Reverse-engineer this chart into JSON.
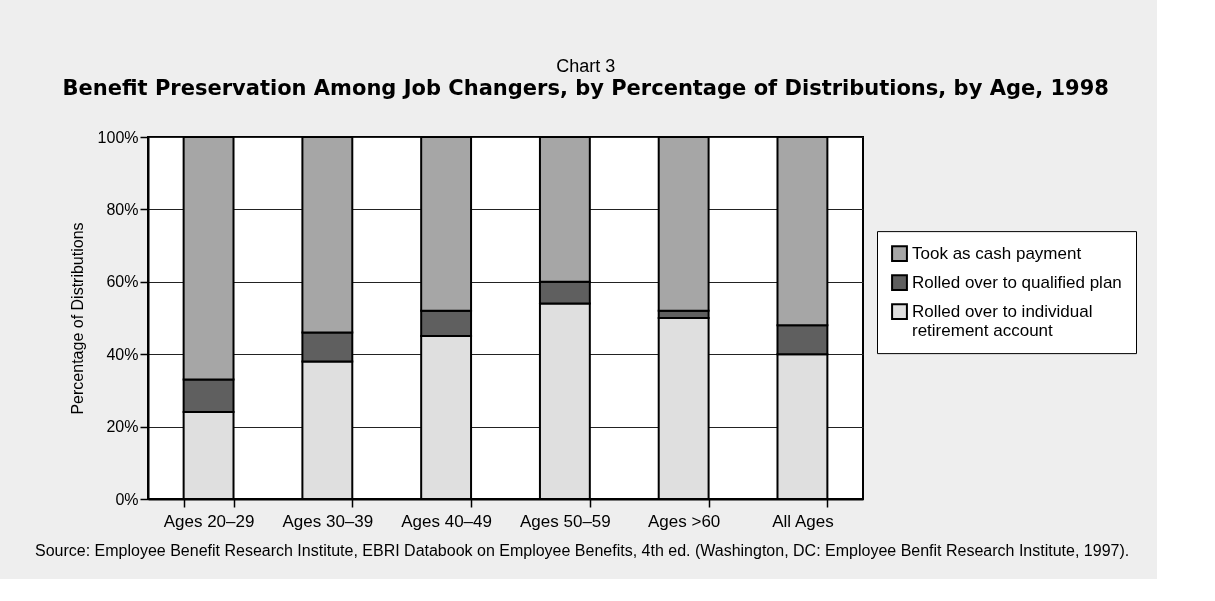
{
  "chart_data": {
    "type": "bar",
    "title": "Chart 3",
    "subtitle": "Benefit Preservation Among Job Changers, by Percentage of Distributions, by Age, 1998",
    "ylabel": "Percentage of Distributions",
    "categories": [
      "Ages 20–29",
      "Ages 30–39",
      "Ages 40–49",
      "Ages 50–59",
      "Ages >60",
      "All Ages"
    ],
    "series": [
      {
        "name": "Rolled over to individual retirement account",
        "color": "#dfdfdf",
        "values": [
          24,
          38,
          45,
          54,
          50,
          40
        ]
      },
      {
        "name": "Rolled over to qualified plan",
        "color": "#5f5f5f",
        "values": [
          9,
          8,
          7,
          6,
          2,
          8
        ]
      },
      {
        "name": "Took as cash payment",
        "color": "#a6a6a6",
        "values": [
          67,
          54,
          48,
          40,
          48,
          52
        ]
      }
    ],
    "stacked": true,
    "ylim": [
      0,
      100
    ],
    "yticks": [
      {
        "value": 0,
        "label": "0%"
      },
      {
        "value": 20,
        "label": "20%"
      },
      {
        "value": 40,
        "label": "40%"
      },
      {
        "value": 60,
        "label": "60%"
      },
      {
        "value": 80,
        "label": "80%"
      },
      {
        "value": 100,
        "label": "100%"
      }
    ],
    "grid": "y",
    "legend": "right",
    "annotations": [
      "Source: Employee Benefit Research Institute, EBRI Databook on Employee Benefits, 4th ed. (Washington, DC: Employee Benfit Research Institute, 1997)."
    ]
  }
}
